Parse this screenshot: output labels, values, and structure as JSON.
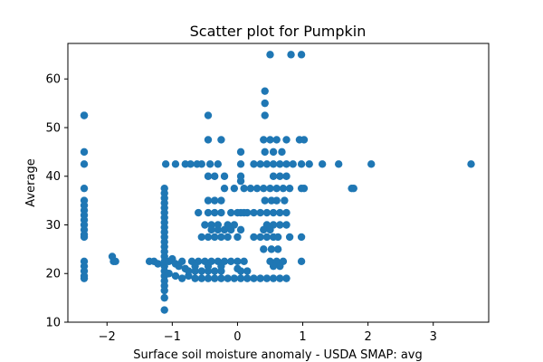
{
  "chart_data": {
    "type": "scatter",
    "title": "Scatter plot for Pumpkin",
    "xlabel": "Surface soil moisture anomaly  - USDA SMAP: avg",
    "ylabel": "Average",
    "xlim": [
      -2.6,
      3.85
    ],
    "ylim": [
      10,
      67.3
    ],
    "xticks": [
      -2,
      -1,
      0,
      1,
      2,
      3
    ],
    "yticks": [
      10,
      20,
      30,
      40,
      50,
      60
    ],
    "grid": false,
    "marker_color": "#1f77b4",
    "series": [
      {
        "points": [
          [
            -2.35,
            52.5
          ],
          [
            -2.35,
            52.5
          ],
          [
            -2.35,
            45
          ],
          [
            -2.35,
            42.5
          ],
          [
            -2.35,
            37.5
          ],
          [
            -2.35,
            35
          ],
          [
            -2.35,
            34
          ],
          [
            -2.35,
            33
          ],
          [
            -2.35,
            32
          ],
          [
            -2.35,
            31
          ],
          [
            -2.35,
            30
          ],
          [
            -2.35,
            29
          ],
          [
            -2.35,
            28
          ],
          [
            -2.35,
            27.5
          ],
          [
            -2.35,
            22.5
          ],
          [
            -2.35,
            21.5
          ],
          [
            -2.35,
            20.5
          ],
          [
            -2.35,
            19.5
          ],
          [
            -2.35,
            19
          ],
          [
            -1.92,
            23.5
          ],
          [
            -1.9,
            22.5
          ],
          [
            -1.87,
            22.5
          ],
          [
            -1.35,
            22.5
          ],
          [
            -1.28,
            22.5
          ],
          [
            -1.22,
            22
          ],
          [
            -1.12,
            37.5
          ],
          [
            -1.12,
            36.5
          ],
          [
            -1.12,
            35.5
          ],
          [
            -1.12,
            34.5
          ],
          [
            -1.12,
            33.5
          ],
          [
            -1.12,
            32.5
          ],
          [
            -1.12,
            31.5
          ],
          [
            -1.12,
            30.5
          ],
          [
            -1.12,
            29.5
          ],
          [
            -1.12,
            28.5
          ],
          [
            -1.12,
            27.5
          ],
          [
            -1.12,
            26.5
          ],
          [
            -1.12,
            25.5
          ],
          [
            -1.12,
            24.5
          ],
          [
            -1.12,
            23.5
          ],
          [
            -1.12,
            22.5
          ],
          [
            -1.12,
            21.5
          ],
          [
            -1.12,
            20.5
          ],
          [
            -1.12,
            19.5
          ],
          [
            -1.12,
            18.5
          ],
          [
            -1.12,
            17.5
          ],
          [
            -1.12,
            16.5
          ],
          [
            -1.12,
            15
          ],
          [
            -1.12,
            12.5
          ],
          [
            -1.05,
            22.5
          ],
          [
            -1.0,
            23
          ],
          [
            -0.95,
            22
          ],
          [
            -0.9,
            21.5
          ],
          [
            -0.85,
            22.5
          ],
          [
            -0.8,
            21
          ],
          [
            -1.05,
            20
          ],
          [
            -0.95,
            19.5
          ],
          [
            -0.85,
            19
          ],
          [
            -0.75,
            19.5
          ],
          [
            -0.65,
            19
          ],
          [
            -0.55,
            19
          ],
          [
            -0.45,
            19
          ],
          [
            -0.35,
            19
          ],
          [
            -0.25,
            19
          ],
          [
            -0.15,
            19
          ],
          [
            -0.05,
            19
          ],
          [
            0.05,
            19
          ],
          [
            0.15,
            19
          ],
          [
            0.25,
            19
          ],
          [
            0.35,
            19
          ],
          [
            0.45,
            19
          ],
          [
            -0.75,
            20.5
          ],
          [
            -0.65,
            20.5
          ],
          [
            -0.55,
            20.5
          ],
          [
            -0.45,
            20.5
          ],
          [
            -0.35,
            20.5
          ],
          [
            -0.25,
            20.5
          ],
          [
            -0.7,
            22.5
          ],
          [
            -0.6,
            22.5
          ],
          [
            -0.5,
            22.5
          ],
          [
            -0.4,
            22.5
          ],
          [
            -0.3,
            22.5
          ],
          [
            -0.2,
            22.5
          ],
          [
            -0.1,
            22.5
          ],
          [
            0.0,
            22.5
          ],
          [
            0.1,
            22.5
          ],
          [
            -0.65,
            21.5
          ],
          [
            -0.45,
            21.5
          ],
          [
            -0.25,
            21.5
          ],
          [
            0.0,
            21
          ],
          [
            0.05,
            20.5
          ],
          [
            0.15,
            20.5
          ],
          [
            -1.1,
            42.5
          ],
          [
            -0.95,
            42.5
          ],
          [
            -0.8,
            42.5
          ],
          [
            -0.72,
            42.5
          ],
          [
            -0.62,
            42.5
          ],
          [
            -0.55,
            42.5
          ],
          [
            -0.42,
            42.5
          ],
          [
            -0.3,
            42.5
          ],
          [
            -0.45,
            52.5
          ],
          [
            -0.45,
            47.5
          ],
          [
            -0.25,
            47.5
          ],
          [
            -0.45,
            40
          ],
          [
            -0.35,
            40
          ],
          [
            -0.2,
            40
          ],
          [
            0.05,
            45
          ],
          [
            0.05,
            42.5
          ],
          [
            0.05,
            40
          ],
          [
            -0.45,
            35
          ],
          [
            -0.35,
            35
          ],
          [
            -0.25,
            35
          ],
          [
            -0.2,
            37.5
          ],
          [
            -0.05,
            37.5
          ],
          [
            0.05,
            39
          ],
          [
            -0.6,
            32.5
          ],
          [
            -0.45,
            32.5
          ],
          [
            -0.35,
            32.5
          ],
          [
            -0.25,
            32.5
          ],
          [
            -0.1,
            32.5
          ],
          [
            0.0,
            32.5
          ],
          [
            -0.5,
            30
          ],
          [
            -0.4,
            30
          ],
          [
            -0.3,
            30
          ],
          [
            -0.15,
            30
          ],
          [
            -0.05,
            30
          ],
          [
            -0.4,
            29
          ],
          [
            -0.3,
            29
          ],
          [
            -0.2,
            29
          ],
          [
            -0.1,
            29
          ],
          [
            0.05,
            29
          ],
          [
            -0.55,
            27.5
          ],
          [
            -0.45,
            27.5
          ],
          [
            -0.35,
            27.5
          ],
          [
            -0.25,
            27.5
          ],
          [
            -0.15,
            27.5
          ],
          [
            0.0,
            27.5
          ],
          [
            0.05,
            32.5
          ],
          [
            0.1,
            32.5
          ],
          [
            0.15,
            32.5
          ],
          [
            0.25,
            32.5
          ],
          [
            0.35,
            32.5
          ],
          [
            0.45,
            32.5
          ],
          [
            0.55,
            32.5
          ],
          [
            0.65,
            32.5
          ],
          [
            0.75,
            32.5
          ],
          [
            0.1,
            37.5
          ],
          [
            0.2,
            37.5
          ],
          [
            0.3,
            37.5
          ],
          [
            0.4,
            37.5
          ],
          [
            0.5,
            37.5
          ],
          [
            0.6,
            37.5
          ],
          [
            0.7,
            37.5
          ],
          [
            0.8,
            37.5
          ],
          [
            0.98,
            37.5
          ],
          [
            1.02,
            37.5
          ],
          [
            0.25,
            42.5
          ],
          [
            0.35,
            42.5
          ],
          [
            0.45,
            42.5
          ],
          [
            0.55,
            42.5
          ],
          [
            0.65,
            42.5
          ],
          [
            0.75,
            42.5
          ],
          [
            0.85,
            42.5
          ],
          [
            0.98,
            42.5
          ],
          [
            1.1,
            42.5
          ],
          [
            1.3,
            42.5
          ],
          [
            1.55,
            42.5
          ],
          [
            2.05,
            42.5
          ],
          [
            3.58,
            42.5
          ],
          [
            0.4,
            47.5
          ],
          [
            0.5,
            47.5
          ],
          [
            0.6,
            47.5
          ],
          [
            0.75,
            47.5
          ],
          [
            0.95,
            47.5
          ],
          [
            1.02,
            47.5
          ],
          [
            0.42,
            57.5
          ],
          [
            0.42,
            55
          ],
          [
            0.42,
            52.5
          ],
          [
            0.5,
            65
          ],
          [
            0.82,
            65
          ],
          [
            0.98,
            65
          ],
          [
            0.42,
            45
          ],
          [
            0.55,
            45
          ],
          [
            0.68,
            45
          ],
          [
            0.75,
            40
          ],
          [
            0.65,
            40
          ],
          [
            0.55,
            40
          ],
          [
            0.42,
            35
          ],
          [
            0.52,
            35
          ],
          [
            0.6,
            35
          ],
          [
            0.72,
            35
          ],
          [
            0.45,
            30
          ],
          [
            0.55,
            30
          ],
          [
            0.65,
            30
          ],
          [
            0.75,
            30
          ],
          [
            0.4,
            29
          ],
          [
            0.5,
            29
          ],
          [
            0.45,
            27.5
          ],
          [
            0.55,
            27.5
          ],
          [
            0.62,
            27.5
          ],
          [
            0.8,
            27.5
          ],
          [
            0.98,
            27.5
          ],
          [
            0.25,
            27.5
          ],
          [
            0.35,
            27.5
          ],
          [
            0.4,
            25
          ],
          [
            0.52,
            25
          ],
          [
            0.62,
            25
          ],
          [
            0.5,
            22.5
          ],
          [
            0.6,
            22.5
          ],
          [
            0.7,
            22.5
          ],
          [
            0.98,
            22.5
          ],
          [
            0.55,
            21.5
          ],
          [
            0.65,
            21.5
          ],
          [
            0.55,
            19
          ],
          [
            0.65,
            19
          ],
          [
            0.75,
            19
          ],
          [
            1.75,
            37.5
          ],
          [
            1.78,
            37.5
          ]
        ]
      }
    ]
  }
}
